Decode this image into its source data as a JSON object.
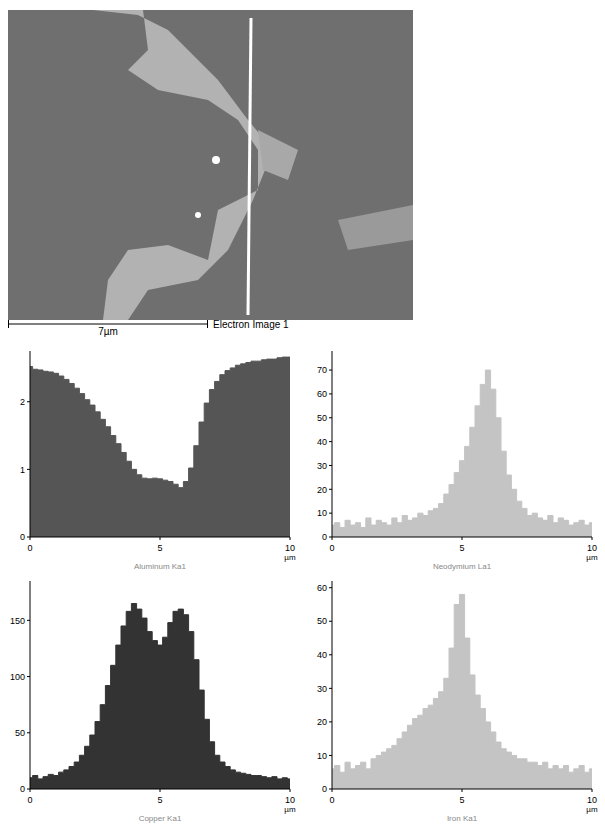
{
  "electron_image": {
    "title": "Electron Image 1",
    "scale_bar": "7µm"
  },
  "chart_data": [
    {
      "type": "area",
      "x_label": "Aluminum Ka1",
      "x_unit": "µm",
      "color": "#555555",
      "xlim": [
        0,
        10
      ],
      "xticks": [
        0,
        5,
        10
      ],
      "ylim": [
        0,
        2.75
      ],
      "yticks": [
        0,
        1,
        2
      ],
      "grid": false,
      "x": [
        0,
        0.2,
        0.4,
        0.6,
        0.8,
        1.0,
        1.2,
        1.4,
        1.6,
        1.8,
        2.0,
        2.2,
        2.4,
        2.6,
        2.8,
        3.0,
        3.2,
        3.4,
        3.6,
        3.8,
        4.0,
        4.2,
        4.4,
        4.6,
        4.8,
        5.0,
        5.2,
        5.4,
        5.6,
        5.8,
        6.0,
        6.2,
        6.4,
        6.6,
        6.8,
        7.0,
        7.2,
        7.4,
        7.6,
        7.8,
        8.0,
        8.2,
        8.4,
        8.6,
        8.8,
        9.0,
        9.2,
        9.4,
        9.6,
        9.8,
        10.0
      ],
      "values": [
        2.52,
        2.48,
        2.47,
        2.45,
        2.44,
        2.42,
        2.38,
        2.33,
        2.27,
        2.2,
        2.12,
        2.03,
        1.95,
        1.85,
        1.74,
        1.63,
        1.5,
        1.38,
        1.25,
        1.12,
        1.0,
        0.92,
        0.87,
        0.86,
        0.87,
        0.86,
        0.84,
        0.82,
        0.78,
        0.73,
        0.82,
        1.02,
        1.35,
        1.7,
        1.98,
        2.18,
        2.3,
        2.4,
        2.46,
        2.5,
        2.54,
        2.56,
        2.58,
        2.6,
        2.6,
        2.62,
        2.63,
        2.63,
        2.65,
        2.66,
        2.66
      ]
    },
    {
      "type": "area",
      "x_label": "Neodymium La1",
      "x_unit": "µm",
      "color": "#c4c4c4",
      "xlim": [
        0,
        10
      ],
      "xticks": [
        0,
        5,
        10
      ],
      "ylim": [
        0,
        78
      ],
      "yticks": [
        0,
        10,
        20,
        30,
        40,
        50,
        60,
        70
      ],
      "grid": false,
      "x": [
        0,
        0.2,
        0.4,
        0.6,
        0.8,
        1.0,
        1.2,
        1.4,
        1.6,
        1.8,
        2.0,
        2.2,
        2.4,
        2.6,
        2.8,
        3.0,
        3.2,
        3.4,
        3.6,
        3.8,
        4.0,
        4.2,
        4.4,
        4.6,
        4.8,
        5.0,
        5.2,
        5.4,
        5.6,
        5.8,
        6.0,
        6.2,
        6.4,
        6.6,
        6.8,
        7.0,
        7.2,
        7.4,
        7.6,
        7.8,
        8.0,
        8.2,
        8.4,
        8.6,
        8.8,
        9.0,
        9.2,
        9.4,
        9.6,
        9.8,
        10.0
      ],
      "values": [
        5,
        6,
        4,
        7,
        5,
        6,
        4,
        8,
        5,
        7,
        6,
        5,
        8,
        6,
        9,
        7,
        8,
        10,
        9,
        11,
        12,
        14,
        18,
        22,
        27,
        32,
        38,
        46,
        55,
        64,
        70,
        62,
        50,
        36,
        26,
        20,
        15,
        12,
        9,
        10,
        8,
        7,
        9,
        6,
        8,
        7,
        5,
        6,
        7,
        5,
        6
      ]
    },
    {
      "type": "area",
      "x_label": "Copper Ka1",
      "x_unit": "µm",
      "color": "#333333",
      "xlim": [
        0,
        10
      ],
      "xticks": [
        0,
        5,
        10
      ],
      "ylim": [
        0,
        185
      ],
      "yticks": [
        0,
        50,
        100,
        150
      ],
      "grid": false,
      "x": [
        0,
        0.2,
        0.4,
        0.6,
        0.8,
        1.0,
        1.2,
        1.4,
        1.6,
        1.8,
        2.0,
        2.2,
        2.4,
        2.6,
        2.8,
        3.0,
        3.2,
        3.4,
        3.6,
        3.8,
        4.0,
        4.2,
        4.4,
        4.6,
        4.8,
        5.0,
        5.2,
        5.4,
        5.6,
        5.8,
        6.0,
        6.2,
        6.4,
        6.6,
        6.8,
        7.0,
        7.2,
        7.4,
        7.6,
        7.8,
        8.0,
        8.2,
        8.4,
        8.6,
        8.8,
        9.0,
        9.2,
        9.4,
        9.6,
        9.8,
        10.0
      ],
      "values": [
        10,
        12,
        9,
        11,
        13,
        12,
        15,
        17,
        20,
        24,
        30,
        38,
        48,
        60,
        75,
        92,
        110,
        128,
        145,
        158,
        165,
        160,
        152,
        140,
        132,
        128,
        135,
        148,
        158,
        160,
        155,
        140,
        115,
        88,
        62,
        42,
        30,
        24,
        20,
        17,
        15,
        14,
        13,
        12,
        12,
        11,
        10,
        11,
        9,
        10,
        9
      ]
    },
    {
      "type": "area",
      "x_label": "Iron Ka1",
      "x_unit": "µm",
      "color": "#c4c4c4",
      "xlim": [
        0,
        10
      ],
      "xticks": [
        0,
        5,
        10
      ],
      "ylim": [
        0,
        62
      ],
      "yticks": [
        0,
        10,
        20,
        30,
        40,
        50,
        60
      ],
      "grid": false,
      "x": [
        0,
        0.2,
        0.4,
        0.6,
        0.8,
        1.0,
        1.2,
        1.4,
        1.6,
        1.8,
        2.0,
        2.2,
        2.4,
        2.6,
        2.8,
        3.0,
        3.2,
        3.4,
        3.6,
        3.8,
        4.0,
        4.2,
        4.4,
        4.6,
        4.8,
        5.0,
        5.2,
        5.4,
        5.6,
        5.8,
        6.0,
        6.2,
        6.4,
        6.6,
        6.8,
        7.0,
        7.2,
        7.4,
        7.6,
        7.8,
        8.0,
        8.2,
        8.4,
        8.6,
        8.8,
        9.0,
        9.2,
        9.4,
        9.6,
        9.8,
        10.0
      ],
      "values": [
        6,
        7,
        5,
        8,
        6,
        7,
        8,
        6,
        9,
        10,
        11,
        12,
        13,
        15,
        17,
        19,
        21,
        22,
        24,
        25,
        27,
        29,
        33,
        42,
        55,
        58,
        45,
        34,
        28,
        24,
        20,
        17,
        14,
        12,
        11,
        10,
        9,
        9,
        8,
        8,
        7,
        8,
        6,
        7,
        6,
        7,
        5,
        6,
        7,
        5,
        6
      ]
    }
  ]
}
